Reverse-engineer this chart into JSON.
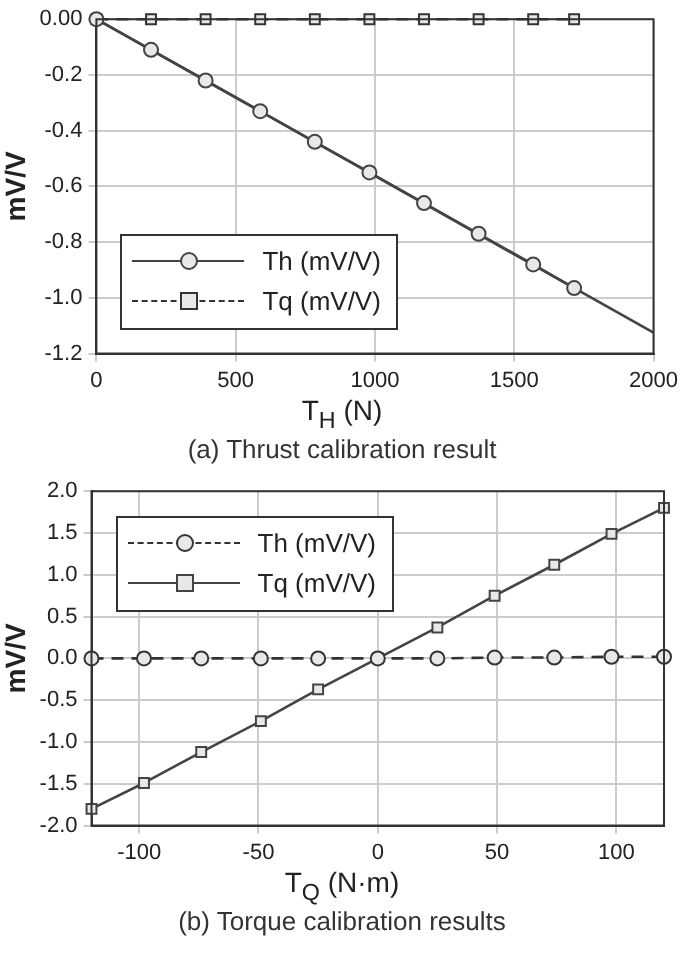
{
  "chart_data": [
    {
      "type": "line",
      "title": "(a) Thrust calibration result",
      "xlabel": "T$_{H}$ (N)",
      "ylabel": "mV/V",
      "xlim": [
        0,
        2000
      ],
      "xticks": [
        0,
        500,
        1000,
        1500,
        2000
      ],
      "ylim": [
        -1.2,
        0
      ],
      "yticks": [
        {
          "value": -1.2,
          "label": "-1.2"
        },
        {
          "value": -1,
          "label": "-1.0"
        },
        -0.8,
        -0.6,
        -0.4,
        -0.2,
        {
          "value": 0,
          "label": "0.00"
        }
      ],
      "grid": true,
      "legend": "bottom left",
      "series": [
        {
          "name": "Th (mV/V)",
          "color": "#444444",
          "marker": "circle",
          "line_style": "solid",
          "x": [
            0,
            196,
            392,
            588,
            784,
            980,
            1176,
            1372,
            1568,
            1715
          ],
          "values": [
            0,
            -0.11,
            -0.22,
            -0.33,
            -0.44,
            -0.55,
            -0.66,
            -0.77,
            -0.88,
            -0.965
          ]
        },
        {
          "name": "Tq (mV/V)",
          "color": "#333333",
          "marker": "square",
          "line_style": "dashed",
          "x": [
            0,
            196,
            392,
            588,
            784,
            980,
            1176,
            1372,
            1568,
            1715
          ],
          "values": [
            0,
            0,
            0,
            0,
            0,
            0,
            0,
            0,
            0,
            0
          ]
        },
        {
          "type": "line",
          "color": "#444444",
          "marker": "none",
          "line_style": "solid",
          "x": [
            0,
            2000
          ],
          "values": [
            0,
            -1.125
          ]
        }
      ]
    },
    {
      "type": "line",
      "title": "(b) Torque calibration results",
      "xlabel": "T$_{Q}$ (N·m)",
      "ylabel": "mV/V",
      "xlim": [
        -120,
        120
      ],
      "xticks": [
        -100,
        -50,
        0,
        50,
        100
      ],
      "ylim": [
        -2,
        2
      ],
      "yticks": [
        {
          "value": -2,
          "label": "-2.0"
        },
        -1.5,
        {
          "value": -1,
          "label": "-1.0"
        },
        -0.5,
        {
          "value": 0,
          "label": "0.0"
        },
        0.5,
        {
          "value": 1,
          "label": "1.0"
        },
        1.5,
        {
          "value": 2,
          "label": "2.0"
        }
      ],
      "grid": true,
      "legend": "top left",
      "series": [
        {
          "name": "Th (mV/V)",
          "color": "#333333",
          "marker": "circle",
          "line_style": "dashed",
          "x": [
            -120,
            -98,
            -74,
            -49,
            -25,
            0,
            25,
            49,
            74,
            98,
            120
          ],
          "values": [
            0,
            0,
            0,
            0,
            0,
            0,
            0,
            0.01,
            0.01,
            0.02,
            0.02
          ]
        },
        {
          "name": "Tq (mV/V)",
          "color": "#444444",
          "marker": "square",
          "line_style": "solid",
          "x": [
            -120,
            -98,
            -74,
            -49,
            -25,
            0,
            25,
            49,
            74,
            98,
            120
          ],
          "values": [
            -1.8,
            -1.49,
            -1.12,
            -0.75,
            -0.37,
            0,
            0.37,
            0.75,
            1.12,
            1.49,
            1.8
          ]
        }
      ]
    }
  ]
}
